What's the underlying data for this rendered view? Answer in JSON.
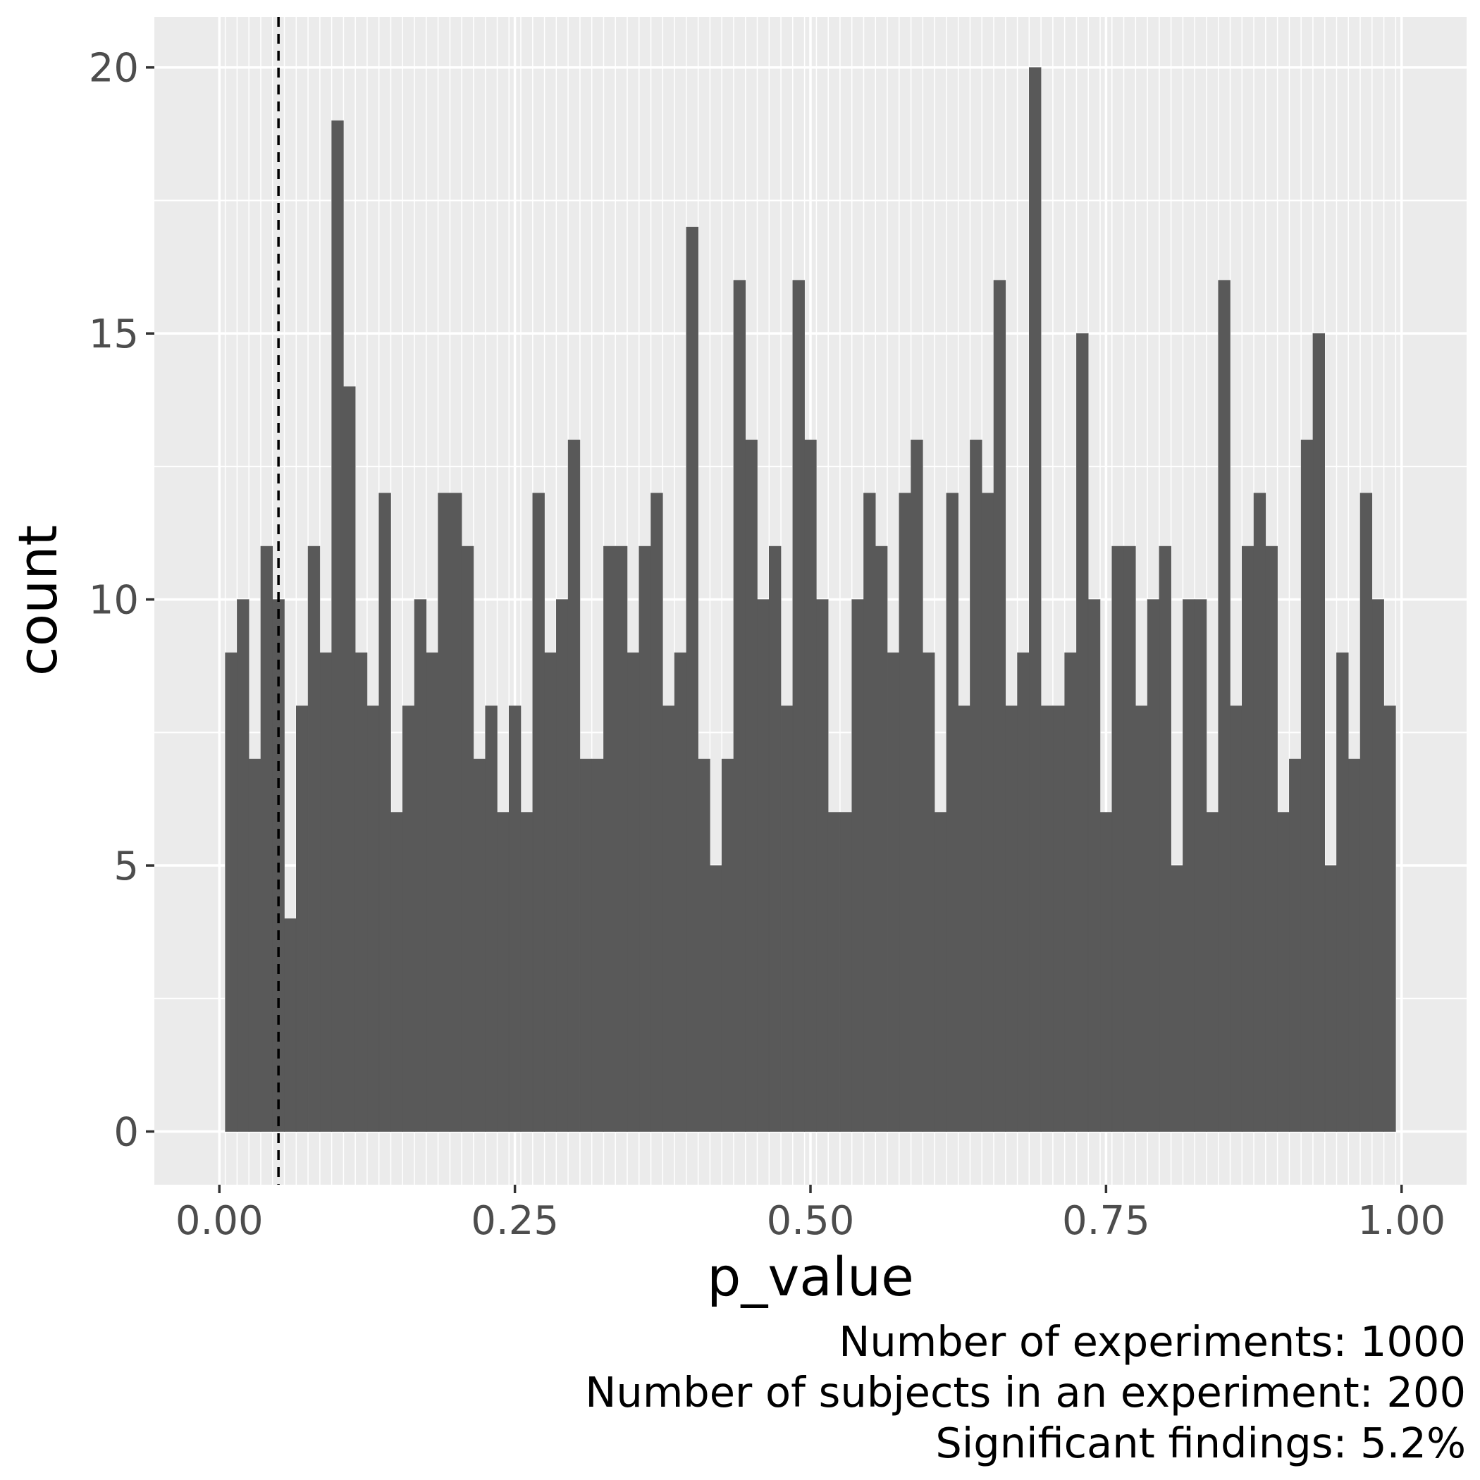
{
  "chart_data": {
    "type": "bar",
    "xlabel": "p_value",
    "ylabel": "count",
    "bin_width": 0.01,
    "bin_start": 0.005,
    "xlim": [
      -0.055,
      1.055
    ],
    "ylim": [
      -1,
      20.95
    ],
    "x_ticks": [
      0.0,
      0.25,
      0.5,
      0.75,
      1.0
    ],
    "x_tick_labels": [
      "0.00",
      "0.25",
      "0.50",
      "0.75",
      "1.00"
    ],
    "y_ticks": [
      0,
      5,
      10,
      15,
      20
    ],
    "y_tick_labels": [
      "0",
      "5",
      "10",
      "15",
      "20"
    ],
    "values": [
      9,
      10,
      7,
      11,
      10,
      4,
      8,
      11,
      9,
      19,
      14,
      9,
      8,
      12,
      6,
      8,
      10,
      9,
      12,
      12,
      11,
      7,
      8,
      6,
      8,
      6,
      12,
      9,
      10,
      13,
      7,
      7,
      11,
      11,
      9,
      11,
      12,
      8,
      9,
      17,
      7,
      5,
      7,
      16,
      13,
      10,
      11,
      8,
      16,
      13,
      10,
      6,
      6,
      10,
      12,
      11,
      9,
      12,
      13,
      9,
      6,
      12,
      8,
      13,
      12,
      16,
      8,
      9,
      20,
      8,
      8,
      9,
      15,
      10,
      6,
      11,
      11,
      8,
      10,
      11,
      5,
      10,
      10,
      6,
      16,
      8,
      11,
      12,
      11,
      6,
      7,
      13,
      15,
      5,
      9,
      7,
      12,
      10,
      8
    ],
    "reference_line": {
      "x": 0.05,
      "style": "dashed"
    },
    "grid": true,
    "bar_color": "#595959",
    "panel_color": "#ebebeb",
    "grid_color": "#ffffff",
    "caption": [
      "Number of experiments: 1000",
      "Number of subjects in an experiment: 200",
      "Significant findings: 5.2%"
    ]
  }
}
